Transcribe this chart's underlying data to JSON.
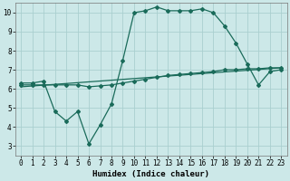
{
  "title": "",
  "xlabel": "Humidex (Indice chaleur)",
  "ylabel": "",
  "xlim": [
    -0.5,
    23.5
  ],
  "ylim": [
    2.5,
    10.5
  ],
  "yticks": [
    3,
    4,
    5,
    6,
    7,
    8,
    9,
    10
  ],
  "xticks": [
    0,
    1,
    2,
    3,
    4,
    5,
    6,
    7,
    8,
    9,
    10,
    11,
    12,
    13,
    14,
    15,
    16,
    17,
    18,
    19,
    20,
    21,
    22,
    23
  ],
  "bg_color": "#cce8e8",
  "grid_color": "#aacfcf",
  "line_color": "#1a6b5a",
  "line1_x": [
    0,
    1,
    2,
    3,
    4,
    5,
    6,
    7,
    8,
    9,
    10,
    11,
    12,
    13,
    14,
    15,
    16,
    17,
    18,
    19,
    20,
    21,
    22,
    23
  ],
  "line1_y": [
    6.3,
    6.3,
    6.4,
    4.8,
    4.3,
    4.8,
    3.1,
    4.1,
    5.2,
    7.5,
    10.0,
    10.1,
    10.3,
    10.1,
    10.1,
    10.1,
    10.2,
    10.0,
    9.3,
    8.4,
    7.3,
    6.2,
    6.9,
    7.0
  ],
  "line2_x": [
    0,
    1,
    2,
    3,
    4,
    5,
    6,
    7,
    8,
    9,
    10,
    11,
    12,
    13,
    14,
    15,
    16,
    17,
    18,
    19,
    20,
    21,
    22,
    23
  ],
  "line2_y": [
    6.2,
    6.2,
    6.2,
    6.2,
    6.2,
    6.2,
    6.1,
    6.15,
    6.2,
    6.3,
    6.4,
    6.5,
    6.6,
    6.7,
    6.75,
    6.8,
    6.85,
    6.9,
    7.0,
    7.0,
    7.05,
    7.05,
    7.1,
    7.1
  ],
  "line3_x": [
    0,
    23
  ],
  "line3_y": [
    6.1,
    7.1
  ],
  "xlabel_fontsize": 6.5,
  "tick_fontsize": 5.5,
  "lw": 0.9,
  "ms": 2.0
}
